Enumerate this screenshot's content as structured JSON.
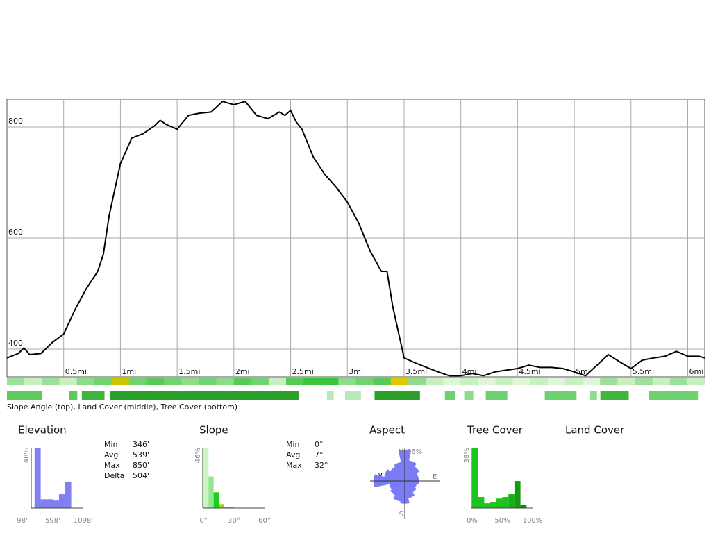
{
  "chart_data": [
    {
      "type": "line",
      "x": [
        0,
        0.1,
        0.15,
        0.2,
        0.3,
        0.4,
        0.5,
        0.6,
        0.7,
        0.8,
        0.85,
        0.9,
        1.0,
        1.1,
        1.2,
        1.3,
        1.35,
        1.4,
        1.5,
        1.6,
        1.7,
        1.8,
        1.9,
        2.0,
        2.1,
        2.2,
        2.3,
        2.4,
        2.45,
        2.5,
        2.55,
        2.6,
        2.7,
        2.8,
        2.9,
        3.0,
        3.1,
        3.2,
        3.3,
        3.35,
        3.4,
        3.5,
        3.6,
        3.7,
        3.8,
        3.9,
        4.0,
        4.1,
        4.2,
        4.3,
        4.4,
        4.5,
        4.6,
        4.7,
        4.8,
        4.9,
        5.0,
        5.1,
        5.2,
        5.3,
        5.4,
        5.5,
        5.6,
        5.7,
        5.8,
        5.9,
        6.0,
        6.1,
        6.15
      ],
      "series": [
        {
          "color": "#000000",
          "values": [
            384,
            392,
            402,
            390,
            392,
            412,
            427,
            471,
            509,
            540,
            571,
            640,
            734,
            780,
            788,
            802,
            812,
            805,
            796,
            821,
            825,
            827,
            846,
            840,
            846,
            821,
            815,
            827,
            821,
            830,
            809,
            796,
            746,
            715,
            692,
            665,
            627,
            577,
            540,
            540,
            477,
            384,
            375,
            367,
            359,
            352,
            352,
            356,
            352,
            359,
            362,
            365,
            371,
            367,
            367,
            365,
            359,
            352,
            371,
            390,
            377,
            365,
            380,
            384,
            387,
            396,
            387,
            387,
            384
          ]
        }
      ],
      "xlim": [
        0,
        6.15
      ],
      "ylim": [
        350,
        850
      ],
      "xticks": [
        {
          "value": 0.5,
          "label": "0.5mi"
        },
        {
          "value": 1,
          "label": "1mi"
        },
        {
          "value": 1.5,
          "label": "1.5mi"
        },
        {
          "value": 2,
          "label": "2mi"
        },
        {
          "value": 2.5,
          "label": "2.5mi"
        },
        {
          "value": 3,
          "label": "3mi"
        },
        {
          "value": 3.5,
          "label": "3.5mi"
        },
        {
          "value": 4,
          "label": "4mi"
        },
        {
          "value": 4.5,
          "label": "4.5mi"
        },
        {
          "value": 5,
          "label": "5mi"
        },
        {
          "value": 5.5,
          "label": "5.5mi"
        },
        {
          "value": 6,
          "label": "6mi"
        }
      ],
      "yticks": [
        {
          "value": 400,
          "label": "400'"
        },
        {
          "value": 600,
          "label": "600'"
        },
        {
          "value": 800,
          "label": "800'"
        }
      ],
      "grid": true
    },
    {
      "type": "histogram",
      "title": "Elevation",
      "ylabel": "48%",
      "bins": [
        300,
        400,
        500,
        600,
        700,
        800,
        900
      ],
      "values": [
        48,
        7,
        7,
        6,
        11,
        21
      ],
      "color": "#8080f0",
      "xlim": [
        98,
        1098
      ],
      "ylim": [
        0,
        48
      ],
      "xticks": [
        {
          "value": 98,
          "label": "98'"
        },
        {
          "value": 598,
          "label": "598'"
        },
        {
          "value": 1098,
          "label": "1098'"
        }
      ]
    },
    {
      "type": "histogram",
      "title": "Slope",
      "ylabel": "46%",
      "bins": [
        0,
        5,
        10,
        15,
        20,
        25,
        30
      ],
      "values": [
        46,
        24,
        12,
        3,
        1,
        0.5
      ],
      "colors": [
        "#c8f5c0",
        "#8fe88f",
        "#1ecc1e",
        "#9ad01e",
        "#d0c020",
        "#e09020"
      ],
      "xlim": [
        0,
        60
      ],
      "ylim": [
        0,
        46
      ],
      "xticks": [
        {
          "value": 0,
          "label": "0°"
        },
        {
          "value": 30,
          "label": "30°"
        },
        {
          "value": 60,
          "label": "60°"
        }
      ]
    },
    {
      "type": "polar",
      "title": "Aspect",
      "rlabel": "36%",
      "rmax": 36,
      "color": "#7b7bf5",
      "values": [
        36,
        24,
        20,
        16,
        16,
        14,
        16,
        20,
        26,
        24,
        20,
        18,
        36,
        24,
        20,
        22
      ],
      "labels": {
        "n": "N",
        "e": "E",
        "s": "S",
        "w": "W"
      }
    },
    {
      "type": "histogram",
      "title": "Tree Cover",
      "ylabel": "38%",
      "bins": [
        0,
        10,
        20,
        30,
        40,
        50,
        60,
        70,
        80,
        90
      ],
      "values": [
        38,
        7,
        3,
        3.5,
        6,
        7,
        8.7,
        17,
        2
      ],
      "colors": [
        "#1ec41e",
        "#1ec41e",
        "#1ec41e",
        "#1ec41e",
        "#1ec41e",
        "#1ec41e",
        "#18b018",
        "#129a12",
        "#0e850e"
      ],
      "xlim": [
        0,
        100
      ],
      "ylim": [
        0,
        38
      ],
      "xticks": [
        {
          "value": 0,
          "label": "0%"
        },
        {
          "value": 50,
          "label": "50%"
        },
        {
          "value": 100,
          "label": "100%"
        }
      ]
    }
  ],
  "strips": {
    "caption": "Slope Angle (top), Land Cover (middle), Tree Cover (bottom)",
    "slope_colors": [
      "#9be09b",
      "#c8f0c0",
      "#9be09b",
      "#c8f0c0",
      "#8cdc8c",
      "#6fd46f",
      "#c8c800",
      "#6fd46f",
      "#55cc55",
      "#6fd46f",
      "#8cdc8c",
      "#6fd46f",
      "#8cdc8c",
      "#55cc55",
      "#6fd46f",
      "#c8f0c0",
      "#55cc55",
      "#3cc43c",
      "#3cc43c",
      "#8cdc8c",
      "#6fd46f",
      "#55cc55",
      "#e0c800",
      "#8cdc8c",
      "#c8f0c0",
      "#e0f5dc",
      "#c8f0c0",
      "#e0f5dc",
      "#c8f0c0",
      "#e0f5dc",
      "#c8f0c0",
      "#e0f5dc",
      "#c8f0c0",
      "#e0f5dc",
      "#9be09b",
      "#c8f0c0",
      "#9be09b",
      "#c8f0c0",
      "#9be09b",
      "#c8f0c0"
    ],
    "tree_segments": [
      {
        "start": 0,
        "end": 0.31,
        "color": "#5fc85f"
      },
      {
        "start": 0.55,
        "end": 0.62,
        "color": "#5fc85f"
      },
      {
        "start": 0.66,
        "end": 0.86,
        "color": "#3fb43f"
      },
      {
        "start": 0.91,
        "end": 2.57,
        "color": "#2aa02a"
      },
      {
        "start": 2.82,
        "end": 2.88,
        "color": "#b8e8b8"
      },
      {
        "start": 2.98,
        "end": 3.12,
        "color": "#b8e8b8"
      },
      {
        "start": 3.24,
        "end": 3.64,
        "color": "#2aa02a"
      },
      {
        "start": 3.86,
        "end": 3.95,
        "color": "#6fd06f"
      },
      {
        "start": 4.03,
        "end": 4.11,
        "color": "#8cdc8c"
      },
      {
        "start": 4.22,
        "end": 4.41,
        "color": "#6fd06f"
      },
      {
        "start": 4.74,
        "end": 5.02,
        "color": "#6fd06f"
      },
      {
        "start": 5.14,
        "end": 5.2,
        "color": "#8cdc8c"
      },
      {
        "start": 5.23,
        "end": 5.48,
        "color": "#3fb43f"
      },
      {
        "start": 5.66,
        "end": 6.09,
        "color": "#6fd06f"
      }
    ]
  },
  "elevation_stats": {
    "labels": [
      "Min",
      "Avg",
      "Max",
      "Delta"
    ],
    "values": [
      "346'",
      "539'",
      "850'",
      "504'"
    ]
  },
  "slope_stats": {
    "labels": [
      "Min",
      "Avg",
      "Max"
    ],
    "values": [
      "0°",
      "7°",
      "32°"
    ]
  },
  "land_cover": {
    "title": "Land Cover"
  }
}
